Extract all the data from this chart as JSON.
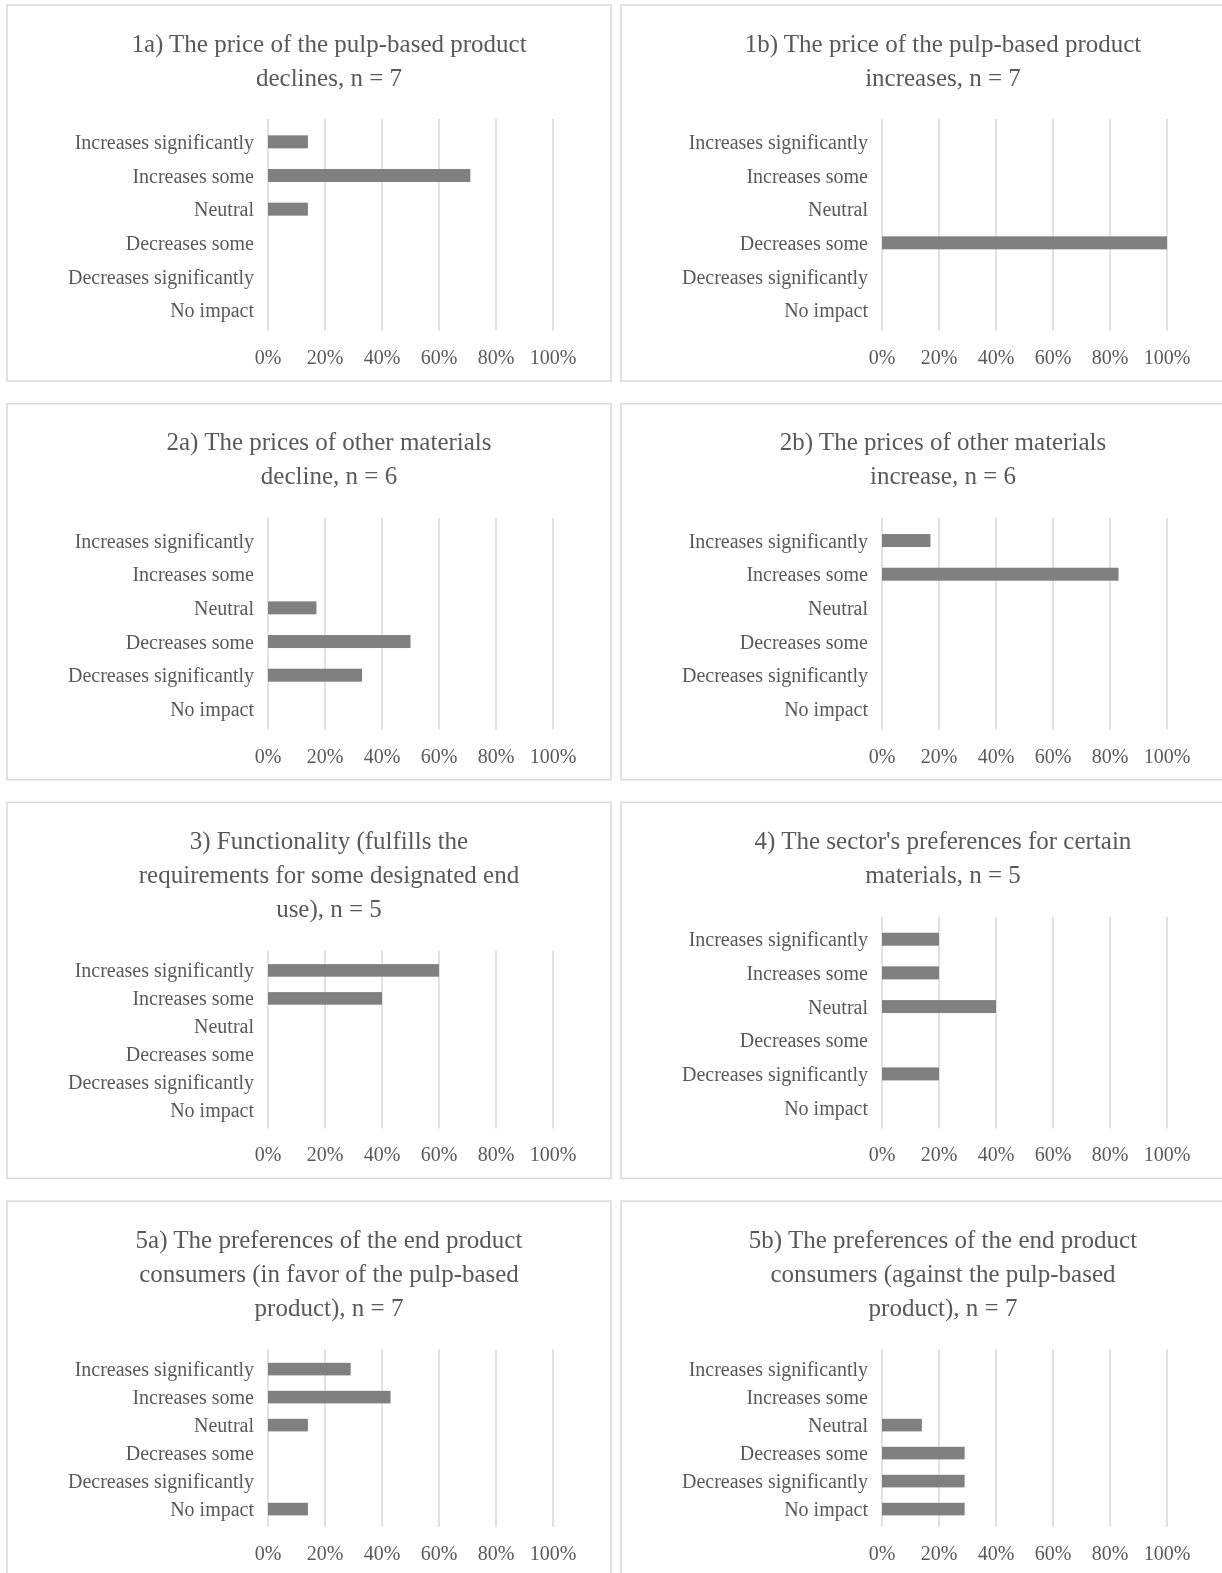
{
  "chart_data": [
    {
      "type": "bar",
      "orientation": "horizontal",
      "title": "1a) The price of the pulp-based product declines, n = 7",
      "categories": [
        "Increases significantly",
        "Increases some",
        "Neutral",
        "Decreases some",
        "Decreases significantly",
        "No impact"
      ],
      "values": [
        14,
        71,
        14,
        0,
        0,
        0
      ],
      "color": "#808080",
      "xlim": [
        0,
        100
      ],
      "xticks": [
        {
          "value": 0,
          "label": "0%"
        },
        {
          "value": 20,
          "label": "20%"
        },
        {
          "value": 40,
          "label": "40%"
        },
        {
          "value": 60,
          "label": "60%"
        },
        {
          "value": 80,
          "label": "80%"
        },
        {
          "value": 100,
          "label": "100%"
        }
      ],
      "grid": "x"
    },
    {
      "type": "bar",
      "orientation": "horizontal",
      "title": "1b) The price of the pulp-based product increases, n = 7",
      "categories": [
        "Increases significantly",
        "Increases some",
        "Neutral",
        "Decreases some",
        "Decreases significantly",
        "No impact"
      ],
      "values": [
        0,
        0,
        0,
        100,
        0,
        0
      ],
      "color": "#808080",
      "xlim": [
        0,
        100
      ],
      "xticks": [
        {
          "value": 0,
          "label": "0%"
        },
        {
          "value": 20,
          "label": "20%"
        },
        {
          "value": 40,
          "label": "40%"
        },
        {
          "value": 60,
          "label": "60%"
        },
        {
          "value": 80,
          "label": "80%"
        },
        {
          "value": 100,
          "label": "100%"
        }
      ],
      "grid": "x"
    },
    {
      "type": "bar",
      "orientation": "horizontal",
      "title": "2a) The prices of other materials decline, n = 6",
      "categories": [
        "Increases significantly",
        "Increases some",
        "Neutral",
        "Decreases some",
        "Decreases significantly",
        "No impact"
      ],
      "values": [
        0,
        0,
        17,
        50,
        33,
        0
      ],
      "color": "#808080",
      "xlim": [
        0,
        100
      ],
      "xticks": [
        {
          "value": 0,
          "label": "0%"
        },
        {
          "value": 20,
          "label": "20%"
        },
        {
          "value": 40,
          "label": "40%"
        },
        {
          "value": 60,
          "label": "60%"
        },
        {
          "value": 80,
          "label": "80%"
        },
        {
          "value": 100,
          "label": "100%"
        }
      ],
      "grid": "x"
    },
    {
      "type": "bar",
      "orientation": "horizontal",
      "title": "2b) The prices of other materials increase, n = 6",
      "categories": [
        "Increases significantly",
        "Increases some",
        "Neutral",
        "Decreases some",
        "Decreases significantly",
        "No impact"
      ],
      "values": [
        17,
        83,
        0,
        0,
        0,
        0
      ],
      "color": "#808080",
      "xlim": [
        0,
        100
      ],
      "xticks": [
        {
          "value": 0,
          "label": "0%"
        },
        {
          "value": 20,
          "label": "20%"
        },
        {
          "value": 40,
          "label": "40%"
        },
        {
          "value": 60,
          "label": "60%"
        },
        {
          "value": 80,
          "label": "80%"
        },
        {
          "value": 100,
          "label": "100%"
        }
      ],
      "grid": "x"
    },
    {
      "type": "bar",
      "orientation": "horizontal",
      "title": "3) Functionality (fulfills the requirements for some designated end use), n = 5",
      "categories": [
        "Increases significantly",
        "Increases some",
        "Neutral",
        "Decreases some",
        "Decreases significantly",
        "No impact"
      ],
      "values": [
        60,
        40,
        0,
        0,
        0,
        0
      ],
      "color": "#808080",
      "xlim": [
        0,
        100
      ],
      "xticks": [
        {
          "value": 0,
          "label": "0%"
        },
        {
          "value": 20,
          "label": "20%"
        },
        {
          "value": 40,
          "label": "40%"
        },
        {
          "value": 60,
          "label": "60%"
        },
        {
          "value": 80,
          "label": "80%"
        },
        {
          "value": 100,
          "label": "100%"
        }
      ],
      "grid": "x"
    },
    {
      "type": "bar",
      "orientation": "horizontal",
      "title": "4) The sector's preferences for certain materials, n = 5",
      "categories": [
        "Increases significantly",
        "Increases some",
        "Neutral",
        "Decreases some",
        "Decreases significantly",
        "No impact"
      ],
      "values": [
        20,
        20,
        40,
        0,
        20,
        0
      ],
      "color": "#808080",
      "xlim": [
        0,
        100
      ],
      "xticks": [
        {
          "value": 0,
          "label": "0%"
        },
        {
          "value": 20,
          "label": "20%"
        },
        {
          "value": 40,
          "label": "40%"
        },
        {
          "value": 60,
          "label": "60%"
        },
        {
          "value": 80,
          "label": "80%"
        },
        {
          "value": 100,
          "label": "100%"
        }
      ],
      "grid": "x"
    },
    {
      "type": "bar",
      "orientation": "horizontal",
      "title": "5a) The preferences of the end product consumers (in favor of the pulp-based product), n = 7",
      "categories": [
        "Increases significantly",
        "Increases some",
        "Neutral",
        "Decreases some",
        "Decreases significantly",
        "No impact"
      ],
      "values": [
        29,
        43,
        14,
        0,
        0,
        14
      ],
      "color": "#808080",
      "xlim": [
        0,
        100
      ],
      "xticks": [
        {
          "value": 0,
          "label": "0%"
        },
        {
          "value": 20,
          "label": "20%"
        },
        {
          "value": 40,
          "label": "40%"
        },
        {
          "value": 60,
          "label": "60%"
        },
        {
          "value": 80,
          "label": "80%"
        },
        {
          "value": 100,
          "label": "100%"
        }
      ],
      "grid": "x"
    },
    {
      "type": "bar",
      "orientation": "horizontal",
      "title": "5b) The preferences of the end product consumers (against the pulp-based product), n = 7",
      "categories": [
        "Increases significantly",
        "Increases some",
        "Neutral",
        "Decreases some",
        "Decreases significantly",
        "No impact"
      ],
      "values": [
        0,
        0,
        14,
        29,
        29,
        29
      ],
      "color": "#808080",
      "xlim": [
        0,
        100
      ],
      "xticks": [
        {
          "value": 0,
          "label": "0%"
        },
        {
          "value": 20,
          "label": "20%"
        },
        {
          "value": 40,
          "label": "40%"
        },
        {
          "value": 60,
          "label": "60%"
        },
        {
          "value": 80,
          "label": "80%"
        },
        {
          "value": 100,
          "label": "100%"
        }
      ],
      "grid": "x"
    }
  ]
}
